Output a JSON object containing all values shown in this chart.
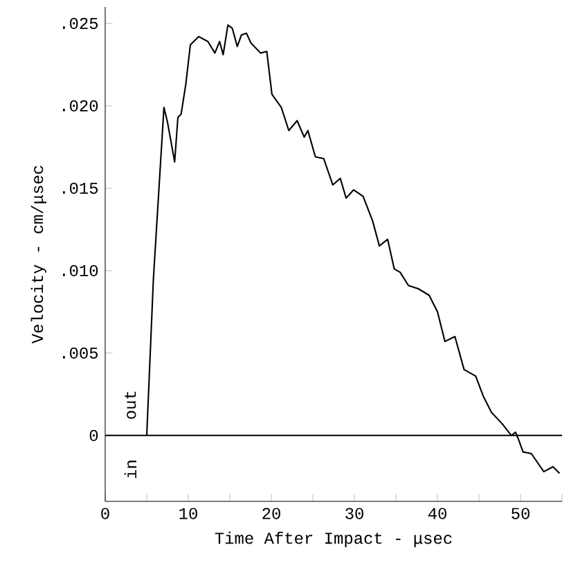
{
  "chart_data": {
    "type": "line",
    "xlabel": "Time After Impact - μsec",
    "ylabel": "Velocity - cm/μsec",
    "annotations": [
      "out",
      "in"
    ],
    "x": [
      5,
      5.8,
      7.07,
      7.5,
      8.36,
      8.75,
      9.14,
      9.7,
      10.25,
      11.26,
      12.37,
      13.2,
      13.77,
      14.2,
      14.77,
      15.3,
      15.9,
      16.4,
      17.0,
      17.56,
      18.7,
      19.45,
      20.07,
      21.2,
      22.1,
      23.1,
      23.96,
      24.4,
      25.3,
      26.3,
      27.4,
      28.3,
      29.0,
      29.9,
      31.05,
      32.2,
      33.0,
      34.0,
      34.8,
      35.5,
      36.5,
      37.7,
      39.0,
      40.0,
      40.9,
      42.1,
      43.2,
      44.6,
      45.5,
      46.5,
      47.8,
      48.9,
      49.4,
      49.8,
      50.3,
      51.3,
      52.8,
      53.9,
      54.7
    ],
    "values": [
      0,
      0.0095,
      0.0199,
      0.019,
      0.0166,
      0.0193,
      0.0195,
      0.0213,
      0.0237,
      0.0242,
      0.0239,
      0.0232,
      0.0239,
      0.0231,
      0.0249,
      0.0247,
      0.0236,
      0.0243,
      0.0244,
      0.0238,
      0.0232,
      0.0233,
      0.0207,
      0.0199,
      0.0185,
      0.0191,
      0.0181,
      0.0185,
      0.0169,
      0.0168,
      0.0152,
      0.0156,
      0.0144,
      0.0149,
      0.0145,
      0.013,
      0.0115,
      0.0119,
      0.0101,
      0.0099,
      0.0091,
      0.0089,
      0.0085,
      0.0075,
      0.0057,
      0.006,
      0.004,
      0.0036,
      0.0024,
      0.0014,
      0.0007,
      0,
      0.0002,
      -0.0003,
      -0.001,
      -0.0011,
      -0.0022,
      -0.0019,
      -0.0023
    ],
    "color": "#000000",
    "line_style": "solid",
    "marker": "none",
    "grid": false,
    "xlim": [
      0,
      55
    ],
    "ylim": [
      -0.004,
      0.026
    ],
    "xticks": [
      0,
      {
        "value": 5,
        "label": null
      },
      10,
      {
        "value": 15,
        "label": null
      },
      20,
      {
        "value": 25,
        "label": null
      },
      30,
      {
        "value": 35,
        "label": null
      },
      40,
      {
        "value": 45,
        "label": null
      },
      50,
      {
        "value": 55,
        "label": null
      }
    ],
    "yticks": [
      0,
      {
        "value": 0.005,
        "label": ".005"
      },
      {
        "value": 0.01,
        "label": ".010"
      },
      {
        "value": 0.015,
        "label": ".015"
      },
      {
        "value": 0.02,
        "label": ".020"
      },
      {
        "value": 0.025,
        "label": ".025"
      }
    ],
    "ref_lines": [
      {
        "axis": "y",
        "value": 0,
        "color": "#000000"
      }
    ]
  }
}
